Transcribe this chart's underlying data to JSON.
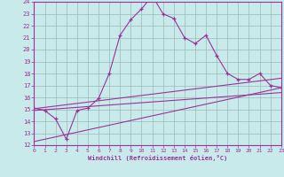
{
  "xlabel": "Windchill (Refroidissement éolien,°C)",
  "bg_color": "#c8eaea",
  "line_color": "#993399",
  "grid_color": "#9bbaba",
  "xlim": [
    0,
    23
  ],
  "ylim": [
    12,
    24
  ],
  "x_ticks": [
    0,
    1,
    2,
    3,
    4,
    5,
    6,
    7,
    8,
    9,
    10,
    11,
    12,
    13,
    14,
    15,
    16,
    17,
    18,
    19,
    20,
    21,
    22,
    23
  ],
  "y_ticks": [
    12,
    13,
    14,
    15,
    16,
    17,
    18,
    19,
    20,
    21,
    22,
    23,
    24
  ],
  "zigzag_x": [
    0,
    1,
    2,
    3,
    4,
    5,
    6,
    7,
    8,
    9,
    10,
    11,
    12,
    13,
    14,
    15,
    16,
    17,
    18,
    19,
    20,
    21,
    22,
    23
  ],
  "zigzag_y": [
    15.1,
    14.9,
    14.2,
    12.5,
    14.9,
    15.1,
    15.9,
    18.0,
    21.2,
    22.5,
    23.4,
    24.5,
    23.0,
    22.6,
    21.0,
    20.5,
    21.2,
    19.5,
    18.0,
    17.5,
    17.5,
    18.0,
    17.0,
    16.8
  ],
  "line1_x": [
    0,
    23
  ],
  "line1_y": [
    15.05,
    17.6
  ],
  "line2_x": [
    0,
    23
  ],
  "line2_y": [
    12.3,
    16.8
  ],
  "line3_x": [
    0,
    23
  ],
  "line3_y": [
    14.9,
    16.4
  ]
}
